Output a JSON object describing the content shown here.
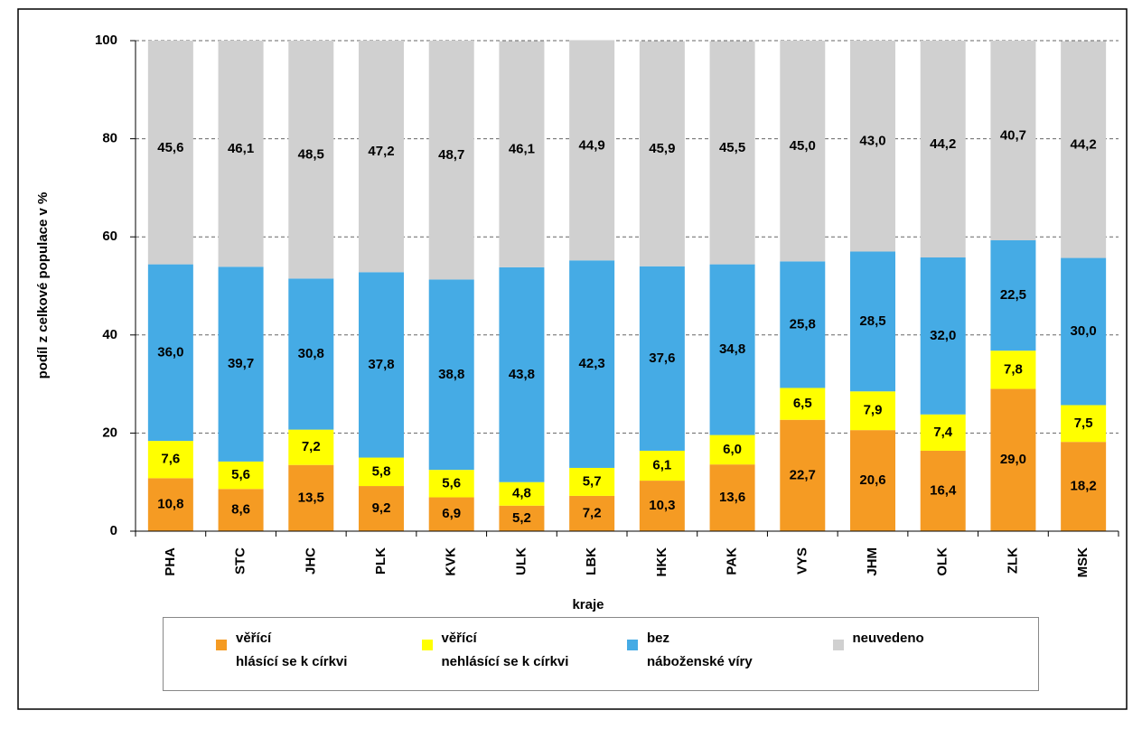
{
  "chart_data": {
    "type": "stacked-bar",
    "y_label": "podíl z celkové populace v %",
    "x_label": "kraje",
    "categories": [
      "PHA",
      "STC",
      "JHC",
      "PLK",
      "KVK",
      "ULK",
      "LBK",
      "HKK",
      "PAK",
      "VYS",
      "JHM",
      "OLK",
      "ZLK",
      "MSK"
    ],
    "series": [
      {
        "name": "věřící\nhlásící se k církvi",
        "color": "#f59b23",
        "values": [
          10.8,
          8.6,
          13.5,
          9.2,
          6.9,
          5.2,
          7.2,
          10.3,
          13.6,
          22.7,
          20.6,
          16.4,
          29.0,
          18.2
        ],
        "value_labels": [
          "10,8",
          "8,6",
          "13,5",
          "9,2",
          "6,9",
          "5,2",
          "7,2",
          "10,3",
          "13,6",
          "22,7",
          "20,6",
          "16,4",
          "29,0",
          "18,2"
        ]
      },
      {
        "name": "věřící\nnehlásící se k církvi",
        "color": "#ffff00",
        "values": [
          7.6,
          5.6,
          7.2,
          5.8,
          5.6,
          4.8,
          5.7,
          6.1,
          6.0,
          6.5,
          7.9,
          7.4,
          7.8,
          7.5
        ],
        "value_labels": [
          "7,6",
          "5,6",
          "7,2",
          "5,8",
          "5,6",
          "4,8",
          "5,7",
          "6,1",
          "6,0",
          "6,5",
          "7,9",
          "7,4",
          "7,8",
          "7,5"
        ]
      },
      {
        "name": "bez\nnáboženské víry",
        "color": "#45abe5",
        "values": [
          36.0,
          39.7,
          30.8,
          37.8,
          38.8,
          43.8,
          42.3,
          37.6,
          34.8,
          25.8,
          28.5,
          32.0,
          22.5,
          30.0
        ],
        "value_labels": [
          "36,0",
          "39,7",
          "30,8",
          "37,8",
          "38,8",
          "43,8",
          "42,3",
          "37,6",
          "34,8",
          "25,8",
          "28,5",
          "32,0",
          "22,5",
          "30,0"
        ]
      },
      {
        "name": "neuvedeno",
        "color": "#d0d0d0",
        "values": [
          45.6,
          46.1,
          48.5,
          47.2,
          48.7,
          46.1,
          44.9,
          45.9,
          45.5,
          45.0,
          43.0,
          44.2,
          40.7,
          44.2
        ],
        "value_labels": [
          "45,6",
          "46,1",
          "48,5",
          "47,2",
          "48,7",
          "46,1",
          "44,9",
          "45,9",
          "45,5",
          "45,0",
          "43,0",
          "44,2",
          "40,7",
          "44,2"
        ]
      }
    ],
    "ylim": [
      0,
      100
    ],
    "yticks": [
      0,
      20,
      40,
      60,
      80,
      100
    ],
    "grid": true
  }
}
